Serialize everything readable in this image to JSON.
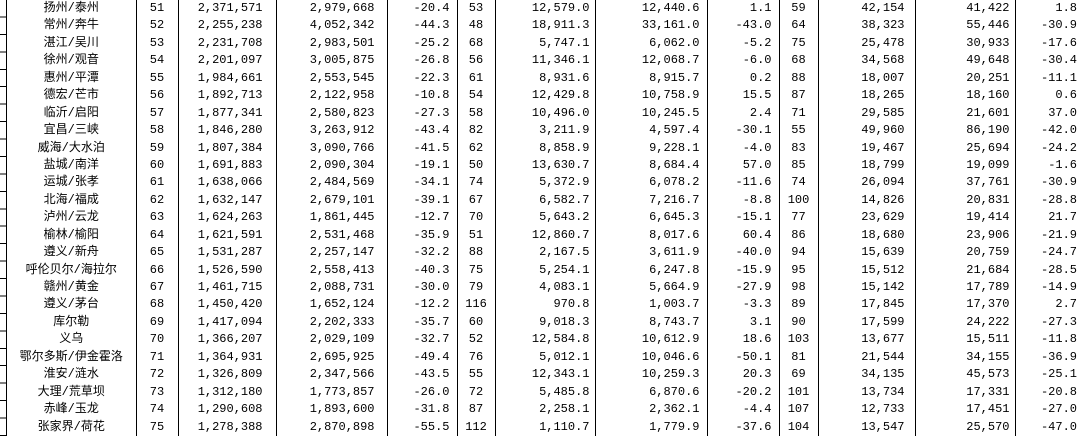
{
  "colors": {
    "background": "#ffffff",
    "text": "#000000",
    "gridline": "#000000"
  },
  "table": {
    "visible_rank_range": "51-75",
    "rows": [
      [
        "扬州/泰州",
        "51",
        "2,371,571",
        "2,979,668",
        "-20.4",
        "53",
        "12,579.0",
        "12,440.6",
        "1.1",
        "59",
        "42,154",
        "41,422",
        "1.8"
      ],
      [
        "常州/奔牛",
        "52",
        "2,255,238",
        "4,052,342",
        "-44.3",
        "48",
        "18,911.3",
        "33,161.0",
        "-43.0",
        "64",
        "38,323",
        "55,446",
        "-30.9"
      ],
      [
        "湛江/吴川",
        "53",
        "2,231,708",
        "2,983,501",
        "-25.2",
        "68",
        "5,747.1",
        "6,062.0",
        "-5.2",
        "75",
        "25,478",
        "30,933",
        "-17.6"
      ],
      [
        "徐州/观音",
        "54",
        "2,201,097",
        "3,005,875",
        "-26.8",
        "56",
        "11,346.1",
        "12,068.7",
        "-6.0",
        "68",
        "34,568",
        "49,648",
        "-30.4"
      ],
      [
        "惠州/平潭",
        "55",
        "1,984,661",
        "2,553,545",
        "-22.3",
        "61",
        "8,931.6",
        "8,915.7",
        "0.2",
        "88",
        "18,007",
        "20,251",
        "-11.1"
      ],
      [
        "德宏/芒市",
        "56",
        "1,892,713",
        "2,122,958",
        "-10.8",
        "54",
        "12,429.8",
        "10,758.9",
        "15.5",
        "87",
        "18,265",
        "18,160",
        "0.6"
      ],
      [
        "临沂/启阳",
        "57",
        "1,877,341",
        "2,580,823",
        "-27.3",
        "58",
        "10,496.0",
        "10,245.5",
        "2.4",
        "71",
        "29,585",
        "21,601",
        "37.0"
      ],
      [
        "宜昌/三峡",
        "58",
        "1,846,280",
        "3,263,912",
        "-43.4",
        "82",
        "3,211.9",
        "4,597.4",
        "-30.1",
        "55",
        "49,960",
        "86,190",
        "-42.0"
      ],
      [
        "威海/大水泊",
        "59",
        "1,807,384",
        "3,090,766",
        "-41.5",
        "62",
        "8,858.9",
        "9,228.1",
        "-4.0",
        "83",
        "19,467",
        "25,694",
        "-24.2"
      ],
      [
        "盐城/南洋",
        "60",
        "1,691,883",
        "2,090,304",
        "-19.1",
        "50",
        "13,630.7",
        "8,684.4",
        "57.0",
        "85",
        "18,799",
        "19,099",
        "-1.6"
      ],
      [
        "运城/张孝",
        "61",
        "1,638,066",
        "2,484,569",
        "-34.1",
        "74",
        "5,372.9",
        "6,078.2",
        "-11.6",
        "74",
        "26,094",
        "37,761",
        "-30.9"
      ],
      [
        "北海/福成",
        "62",
        "1,632,147",
        "2,679,101",
        "-39.1",
        "67",
        "6,582.7",
        "7,216.7",
        "-8.8",
        "100",
        "14,826",
        "20,831",
        "-28.8"
      ],
      [
        "泸州/云龙",
        "63",
        "1,624,263",
        "1,861,445",
        "-12.7",
        "70",
        "5,643.2",
        "6,645.3",
        "-15.1",
        "77",
        "23,629",
        "19,414",
        "21.7"
      ],
      [
        "榆林/榆阳",
        "64",
        "1,621,591",
        "2,531,468",
        "-35.9",
        "51",
        "12,860.7",
        "8,017.6",
        "60.4",
        "86",
        "18,680",
        "23,906",
        "-21.9"
      ],
      [
        "遵义/新舟",
        "65",
        "1,531,287",
        "2,257,147",
        "-32.2",
        "88",
        "2,167.5",
        "3,611.9",
        "-40.0",
        "94",
        "15,639",
        "20,759",
        "-24.7"
      ],
      [
        "呼伦贝尔/海拉尔",
        "66",
        "1,526,590",
        "2,558,413",
        "-40.3",
        "75",
        "5,254.1",
        "6,247.8",
        "-15.9",
        "95",
        "15,512",
        "21,684",
        "-28.5"
      ],
      [
        "赣州/黄金",
        "67",
        "1,461,715",
        "2,088,731",
        "-30.0",
        "79",
        "4,083.1",
        "5,664.9",
        "-27.9",
        "98",
        "15,142",
        "17,789",
        "-14.9"
      ],
      [
        "遵义/茅台",
        "68",
        "1,450,420",
        "1,652,124",
        "-12.2",
        "116",
        "970.8",
        "1,003.7",
        "-3.3",
        "89",
        "17,845",
        "17,370",
        "2.7"
      ],
      [
        "库尔勒",
        "69",
        "1,417,094",
        "2,202,333",
        "-35.7",
        "60",
        "9,018.3",
        "8,743.7",
        "3.1",
        "90",
        "17,599",
        "24,222",
        "-27.3"
      ],
      [
        "义乌",
        "70",
        "1,366,207",
        "2,029,109",
        "-32.7",
        "52",
        "12,584.8",
        "10,612.9",
        "18.6",
        "103",
        "13,677",
        "15,511",
        "-11.8"
      ],
      [
        "鄂尔多斯/伊金霍洛",
        "71",
        "1,364,931",
        "2,695,925",
        "-49.4",
        "76",
        "5,012.1",
        "10,046.6",
        "-50.1",
        "81",
        "21,544",
        "34,155",
        "-36.9"
      ],
      [
        "淮安/涟水",
        "72",
        "1,326,809",
        "2,347,566",
        "-43.5",
        "55",
        "12,343.1",
        "10,259.3",
        "20.3",
        "69",
        "34,135",
        "45,573",
        "-25.1"
      ],
      [
        "大理/荒草坝",
        "73",
        "1,312,180",
        "1,773,857",
        "-26.0",
        "72",
        "5,485.8",
        "6,870.6",
        "-20.2",
        "101",
        "13,734",
        "17,331",
        "-20.8"
      ],
      [
        "赤峰/玉龙",
        "74",
        "1,290,608",
        "1,893,600",
        "-31.8",
        "87",
        "2,258.1",
        "2,362.1",
        "-4.4",
        "107",
        "12,733",
        "17,451",
        "-27.0"
      ],
      [
        "张家界/荷花",
        "75",
        "1,278,388",
        "2,870,898",
        "-55.5",
        "112",
        "1,110.7",
        "1,779.9",
        "-37.6",
        "104",
        "13,547",
        "25,570",
        "-47.0"
      ]
    ]
  }
}
